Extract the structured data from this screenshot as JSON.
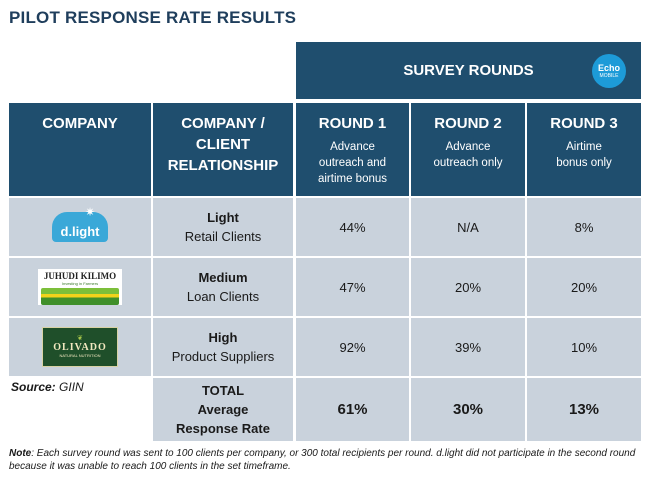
{
  "title": "PILOT RESPONSE RATE RESULTS",
  "survey_rounds_label": "SURVEY ROUNDS",
  "echo_logo": {
    "line1": "Echo",
    "line2": "MOBILE"
  },
  "headers": {
    "company": "COMPANY",
    "relationship_line1": "COMPANY /",
    "relationship_line2": "CLIENT",
    "relationship_line3": "RELATIONSHIP",
    "rounds": [
      {
        "label": "ROUND 1",
        "desc1": "Advance",
        "desc2": "outreach and",
        "desc3": "airtime bonus"
      },
      {
        "label": "ROUND 2",
        "desc1": "Advance",
        "desc2": "outreach only",
        "desc3": ""
      },
      {
        "label": "ROUND 3",
        "desc1": "Airtime",
        "desc2": "bonus only",
        "desc3": ""
      }
    ]
  },
  "rows": [
    {
      "logo": "d.light",
      "level": "Light",
      "client": "Retail Clients",
      "r1": "44%",
      "r2": "N/A",
      "r3": "8%"
    },
    {
      "logo": "JUHUDI KILIMO",
      "logo_tag": "Investing in Farmers",
      "level": "Medium",
      "client": "Loan Clients",
      "r1": "47%",
      "r2": "20%",
      "r3": "20%"
    },
    {
      "logo": "OLIVADO",
      "logo_tag": "NATURAL NUTRITION",
      "level": "High",
      "client": "Product Suppliers",
      "r1": "92%",
      "r2": "39%",
      "r3": "10%"
    }
  ],
  "total": {
    "line1": "TOTAL",
    "line2": "Average",
    "line3": "Response Rate",
    "r1": "61%",
    "r2": "30%",
    "r3": "13%"
  },
  "source_label": "Source:",
  "source_value": "GIIN",
  "note_label": "Note",
  "note_text": ": Each survey round was sent to 100 clients per company, or 300 total recipients per round. d.light did not participate in the second round because it was unable to reach 100 clients in the set timeframe.",
  "colors": {
    "header_bg": "#1f4e6e",
    "row_bg": "#c9d2dc",
    "title": "#1f3e5c",
    "echo": "#1d9bd8"
  }
}
